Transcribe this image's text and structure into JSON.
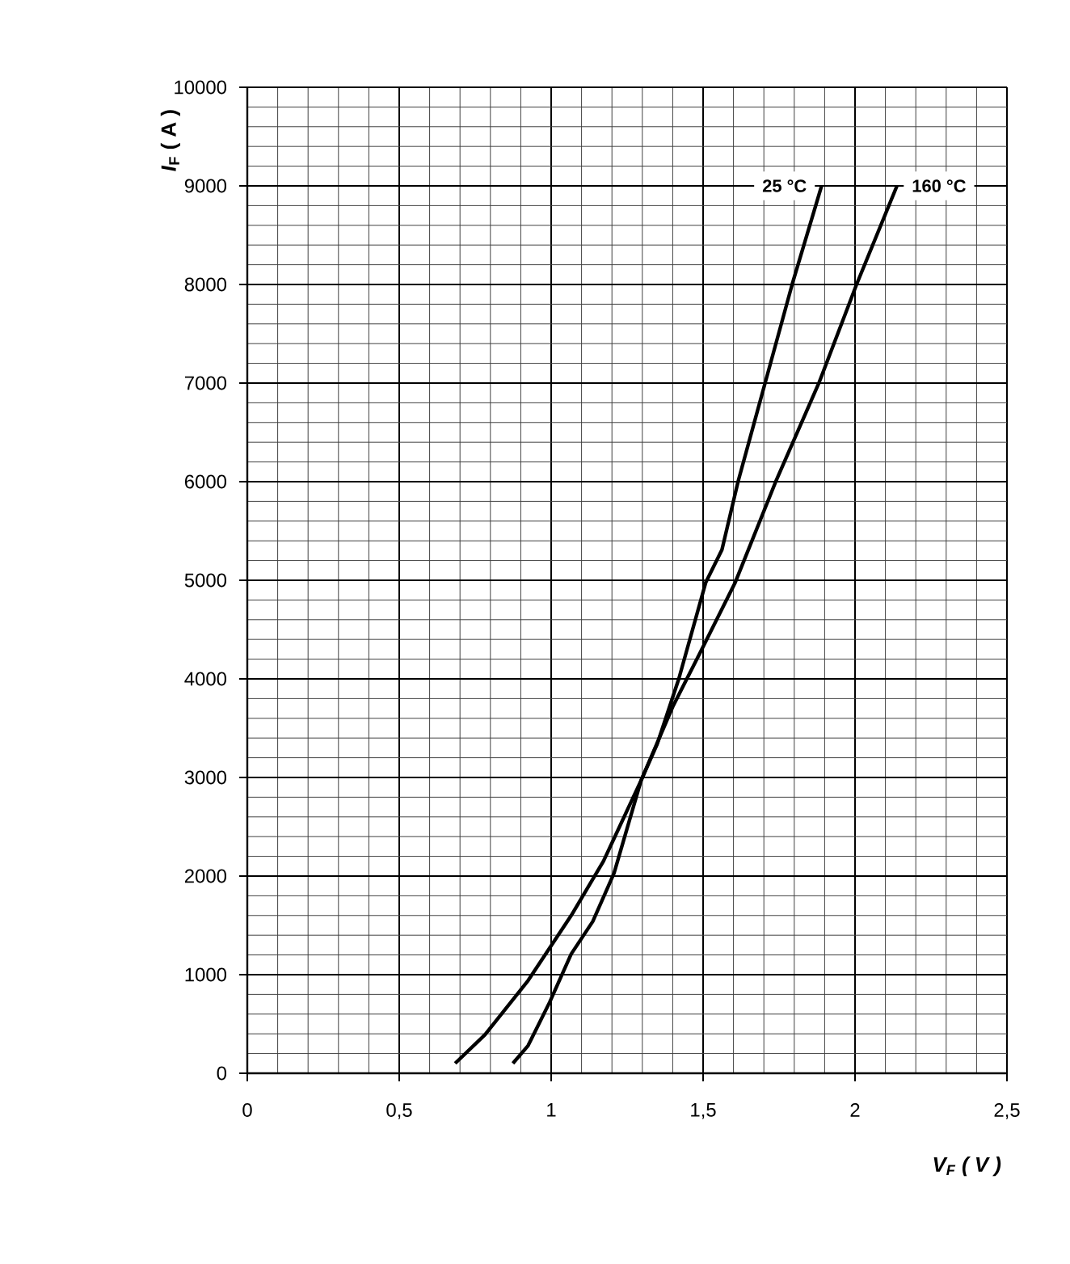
{
  "chart_data": {
    "type": "line",
    "xlabel": "*V*$_{F}$ ( V )",
    "ylabel": "*I*$_{F}$ ( A )",
    "xlim": [
      0,
      2.5
    ],
    "ylim": [
      0,
      10000
    ],
    "xticks": [
      0,
      {
        "value": 0.5,
        "label": "0,5"
      },
      1,
      {
        "value": 1.5,
        "label": "1,5"
      },
      2,
      {
        "value": 2.5,
        "label": "2,5"
      }
    ],
    "yticks": [
      0,
      1000,
      2000,
      3000,
      4000,
      5000,
      6000,
      7000,
      8000,
      9000,
      10000
    ],
    "grid": true,
    "marker": "none",
    "line_style": "solid",
    "series": [
      {
        "name": "25 °C",
        "color": "#000000",
        "x": [
          0.874,
          0.924,
          0.995,
          1.066,
          1.137,
          1.207,
          1.296,
          1.349,
          1.42,
          1.509,
          1.562,
          1.615,
          1.704,
          1.793,
          1.89
        ],
        "values": [
          100,
          280,
          720,
          1210,
          1540,
          2030,
          2970,
          3340,
          4000,
          4980,
          5310,
          6000,
          7000,
          8000,
          9000
        ]
      },
      {
        "name": "160 °C",
        "color": "#000000",
        "x": [
          0.684,
          0.782,
          0.924,
          1.066,
          1.172,
          1.296,
          1.402,
          1.491,
          1.606,
          1.739,
          1.881,
          2.005,
          2.138
        ],
        "values": [
          100,
          390,
          940,
          1600,
          2150,
          2970,
          3730,
          4270,
          4980,
          6000,
          7000,
          8000,
          9000
        ]
      }
    ]
  }
}
